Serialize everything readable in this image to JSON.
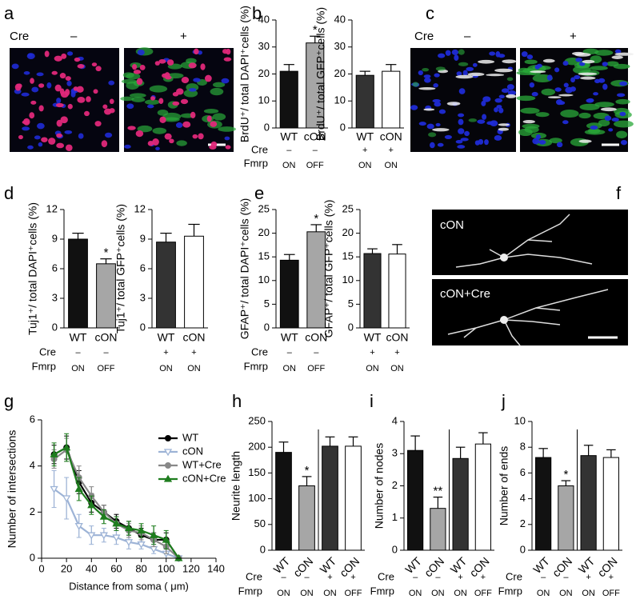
{
  "figure_panels": [
    {
      "panel": "a",
      "row_label": "Cre",
      "image_labels": [
        "–",
        "+"
      ]
    },
    {
      "panel": "c",
      "row_label": "Cre",
      "image_labels": [
        "–",
        "+"
      ]
    },
    {
      "panel": "f",
      "image_labels": [
        "cON",
        "cON+Cre"
      ]
    }
  ],
  "chart_data": [
    {
      "type": "bar",
      "panel": "b",
      "y_label": "BrdU⁺/ total DAPI⁺cells (%)",
      "categories": [
        "WT",
        "cON"
      ],
      "values": [
        21,
        31.5
      ],
      "errors": [
        2.5,
        2.5
      ],
      "colors": [
        "#111111",
        "#a6a6a6"
      ],
      "annotations": [
        {
          "index": 1,
          "text": "*"
        }
      ],
      "ylim": [
        0,
        40
      ],
      "yticks": [
        0,
        10,
        20,
        30,
        40
      ],
      "condition_rows": [
        {
          "label": "Cre",
          "values": [
            "–",
            "–"
          ]
        },
        {
          "label": "Fmrp",
          "values": [
            "ON",
            "OFF"
          ]
        }
      ]
    },
    {
      "type": "bar",
      "y_label": "BrdU⁺/ total GFP⁺cells (%)",
      "categories": [
        "WT",
        "cON"
      ],
      "values": [
        19.5,
        21
      ],
      "errors": [
        1.5,
        2.5
      ],
      "colors": [
        "#333333",
        "#ffffff"
      ],
      "ylim": [
        0,
        40
      ],
      "yticks": [
        0,
        10,
        20,
        30,
        40
      ],
      "condition_rows": [
        {
          "values": [
            "+",
            "+"
          ]
        },
        {
          "values": [
            "ON",
            "ON"
          ]
        }
      ]
    },
    {
      "type": "bar",
      "panel": "d",
      "y_label": "Tuj1⁺/ total DAPI⁺cells (%)",
      "categories": [
        "WT",
        "cON"
      ],
      "values": [
        9,
        6.5
      ],
      "errors": [
        0.6,
        0.5
      ],
      "colors": [
        "#111111",
        "#a6a6a6"
      ],
      "annotations": [
        {
          "index": 1,
          "text": "*"
        }
      ],
      "ylim": [
        0,
        12
      ],
      "yticks": [
        0,
        3,
        6,
        9,
        12
      ],
      "condition_rows": [
        {
          "label": "Cre",
          "values": [
            "–",
            "–"
          ]
        },
        {
          "label": "Fmrp",
          "values": [
            "ON",
            "OFF"
          ]
        }
      ]
    },
    {
      "type": "bar",
      "y_label": "Tuj1⁺/ total GFP⁺cells (%)",
      "categories": [
        "WT",
        "cON"
      ],
      "values": [
        8.7,
        9.3
      ],
      "errors": [
        0.9,
        1.2
      ],
      "colors": [
        "#333333",
        "#ffffff"
      ],
      "ylim": [
        0,
        12
      ],
      "yticks": [
        0,
        3,
        6,
        9,
        12
      ],
      "condition_rows": [
        {
          "values": [
            "+",
            "+"
          ]
        },
        {
          "values": [
            "ON",
            "ON"
          ]
        }
      ]
    },
    {
      "type": "bar",
      "panel": "e",
      "y_label": "GFAP⁺/ total DAPI⁺cells (%)",
      "categories": [
        "WT",
        "cON"
      ],
      "values": [
        14.3,
        20.3
      ],
      "errors": [
        1.2,
        1.5
      ],
      "colors": [
        "#111111",
        "#a6a6a6"
      ],
      "annotations": [
        {
          "index": 1,
          "text": "*"
        }
      ],
      "ylim": [
        0,
        25
      ],
      "yticks": [
        0,
        5,
        10,
        15,
        20,
        25
      ],
      "condition_rows": [
        {
          "label": "Cre",
          "values": [
            "–",
            "–"
          ]
        },
        {
          "label": "Fmrp",
          "values": [
            "ON",
            "OFF"
          ]
        }
      ]
    },
    {
      "type": "bar",
      "y_label": "GFAP⁺/ total GFP⁺cells (%)",
      "categories": [
        "WT",
        "cON"
      ],
      "values": [
        15.7,
        15.6
      ],
      "errors": [
        1,
        2
      ],
      "colors": [
        "#333333",
        "#ffffff"
      ],
      "ylim": [
        0,
        25
      ],
      "yticks": [
        0,
        5,
        10,
        15,
        20,
        25
      ],
      "condition_rows": [
        {
          "values": [
            "+",
            "+"
          ]
        },
        {
          "values": [
            "ON",
            "ON"
          ]
        }
      ]
    },
    {
      "type": "line",
      "panel": "g",
      "x_label": "Distance from soma ( μm)",
      "y_label": "Number of intersections",
      "x": [
        10,
        20,
        30,
        40,
        50,
        60,
        70,
        80,
        90,
        100,
        110
      ],
      "series": [
        {
          "name": "WT",
          "color": "#000000",
          "marker": "circle",
          "values": [
            4.5,
            4.8,
            3.3,
            2.4,
            2.0,
            1.6,
            1.3,
            1.0,
            0.8,
            0.8,
            0
          ],
          "errors": [
            0.4,
            0.5,
            0.5,
            0.4,
            0.3,
            0.3,
            0.3,
            0.3,
            0.3,
            0.3,
            0
          ]
        },
        {
          "name": "cON",
          "color": "#9db3d6",
          "marker": "triangle-open",
          "values": [
            3.0,
            2.6,
            1.4,
            1.0,
            1.0,
            0.9,
            0.7,
            0.6,
            0.4,
            0.2,
            0
          ],
          "errors": [
            0.8,
            0.9,
            0.5,
            0.4,
            0.3,
            0.3,
            0.3,
            0.2,
            0.2,
            0.2,
            0
          ]
        },
        {
          "name": "WT+Cre",
          "color": "#888888",
          "marker": "circle",
          "values": [
            4.3,
            4.7,
            3.5,
            2.7,
            2.0,
            1.5,
            1.2,
            1.1,
            0.8,
            0.5,
            0
          ],
          "errors": [
            0.4,
            0.5,
            0.5,
            0.4,
            0.3,
            0.3,
            0.3,
            0.3,
            0.3,
            0.3,
            0
          ]
        },
        {
          "name": "cON+Cre",
          "color": "#1e7d1e",
          "marker": "triangle",
          "values": [
            4.5,
            4.8,
            3.0,
            2.3,
            1.8,
            1.5,
            1.3,
            1.2,
            1.0,
            0.8,
            0
          ],
          "errors": [
            0.5,
            0.6,
            0.5,
            0.4,
            0.3,
            0.3,
            0.3,
            0.3,
            0.4,
            0.4,
            0
          ]
        }
      ],
      "xlim": [
        0,
        140
      ],
      "xticks": [
        0,
        20,
        40,
        60,
        80,
        100,
        120,
        140
      ],
      "ylim": [
        0,
        6
      ],
      "yticks": [
        0,
        2,
        4,
        6
      ]
    },
    {
      "type": "bar",
      "panel": "h",
      "y_label": "Neurite length",
      "categories": [
        "WT",
        "cON",
        "WT",
        "cON"
      ],
      "values": [
        190,
        125,
        202,
        202
      ],
      "errors": [
        20,
        18,
        18,
        18
      ],
      "colors": [
        "#111111",
        "#a6a6a6",
        "#333333",
        "#ffffff"
      ],
      "annotations": [
        {
          "index": 1,
          "text": "*"
        }
      ],
      "divider": true,
      "rotate_categories": true,
      "ylim": [
        0,
        250
      ],
      "yticks": [
        0,
        50,
        100,
        150,
        200,
        250
      ],
      "condition_rows": [
        {
          "label": "Cre",
          "values": [
            "–",
            "–",
            "+",
            "+"
          ]
        },
        {
          "label": "Fmrp",
          "values": [
            "ON",
            "ON",
            "ON",
            "OFF"
          ]
        }
      ]
    },
    {
      "type": "bar",
      "panel": "i",
      "y_label": "Number of nodes",
      "categories": [
        "WT",
        "cON",
        "WT",
        "cON"
      ],
      "values": [
        3.1,
        1.3,
        2.85,
        3.3
      ],
      "errors": [
        0.45,
        0.35,
        0.35,
        0.35
      ],
      "colors": [
        "#111111",
        "#a6a6a6",
        "#333333",
        "#ffffff"
      ],
      "annotations": [
        {
          "index": 1,
          "text": "**"
        }
      ],
      "divider": true,
      "rotate_categories": true,
      "ylim": [
        0,
        4
      ],
      "yticks": [
        0,
        1,
        2,
        3,
        4
      ],
      "condition_rows": [
        {
          "label": "Cre",
          "values": [
            "–",
            "–",
            "+",
            "+"
          ]
        },
        {
          "label": "Fmrp",
          "values": [
            "ON",
            "ON",
            "ON",
            "OFF"
          ]
        }
      ]
    },
    {
      "type": "bar",
      "panel": "j",
      "y_label": "Number of ends",
      "categories": [
        "WT",
        "cON",
        "WT",
        "cON"
      ],
      "values": [
        7.2,
        5.0,
        7.35,
        7.2
      ],
      "errors": [
        0.7,
        0.4,
        0.8,
        0.6
      ],
      "colors": [
        "#111111",
        "#a6a6a6",
        "#333333",
        "#ffffff"
      ],
      "annotations": [
        {
          "index": 1,
          "text": "*"
        }
      ],
      "divider": true,
      "rotate_categories": true,
      "ylim": [
        0,
        10
      ],
      "yticks": [
        0,
        2,
        4,
        6,
        8,
        10
      ],
      "condition_rows": [
        {
          "label": "Cre",
          "values": [
            "–",
            "–",
            "+",
            "+"
          ]
        },
        {
          "label": "Fmrp",
          "values": [
            "ON",
            "ON",
            "ON",
            "OFF"
          ]
        }
      ]
    }
  ]
}
